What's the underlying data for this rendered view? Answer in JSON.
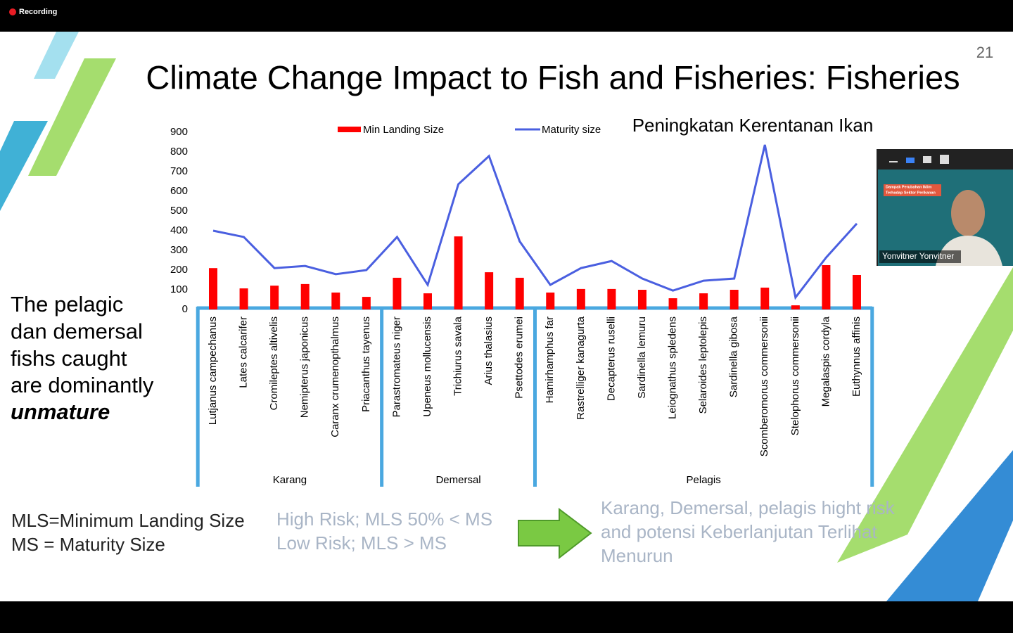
{
  "recording": "Recording",
  "slide_number": 21,
  "title": "Climate Change Impact to Fish and Fisheries: Fisheries",
  "note": {
    "lines": [
      "The pelagic",
      "dan demersal",
      "fishs caught",
      "are dominantly"
    ],
    "emphasis": "unmature"
  },
  "definitions": [
    "MLS=Minimum Landing Size",
    "MS = Maturity Size"
  ],
  "risk": [
    "High Risk; MLS 50% < MS",
    "Low Risk; MLS > MS"
  ],
  "conclusion": [
    "Karang, Demersal, pelagis hight risk",
    "and potensi Keberlanjutan Terlihat",
    "Menurun"
  ],
  "video": {
    "slide_lines": [
      "Dampak Perubahan Iklim",
      "Terhadap Sektor Perikanan"
    ],
    "name": "Yonvitner Yonvitner"
  },
  "chart_data": {
    "type": "combo",
    "subtitle": "Peningkatan Kerentanan Ikan",
    "categories": [
      "Lutjanus campechanus",
      "Lates calcarifer",
      "Cromileptes altivelis",
      "Nemipterus japonicus",
      "Caranx crumenopthalmus",
      "Priacanthus tayenus",
      "Parastromateus niger",
      "Upeneus mollucensis",
      "Trichiurus savala",
      "Arius thalasius",
      "Psettodes erumei",
      "Hamirhamphus far",
      "Rastrelliger kanagurta",
      "Decapterus ruselli",
      "Sardinella lemuru",
      "Leiognathus spledens",
      "Selaroides leptolepis",
      "Sardinella gibosa",
      "Scomberomorus commersonii",
      "Stelophorus commersonii",
      "Megalaspis cordyla",
      "Euthynnus affinis"
    ],
    "groups": [
      "Karang",
      "Karang",
      "Karang",
      "Karang",
      "Karang",
      "Karang",
      "Demersal",
      "Demersal",
      "Demersal",
      "Demersal",
      "Demersal",
      "Pelagis",
      "Pelagis",
      "Pelagis",
      "Pelagis",
      "Pelagis",
      "Pelagis",
      "Pelagis",
      "Pelagis",
      "Pelagis",
      "Pelagis",
      "Pelagis"
    ],
    "series": [
      {
        "name": "Min Landing Size",
        "style": "bar",
        "color": "#ff0000",
        "values": [
          210,
          107,
          121,
          129,
          86,
          64,
          161,
          82,
          371,
          189,
          161,
          86,
          104,
          104,
          100,
          57,
          82,
          100,
          111,
          21,
          225,
          175
        ]
      },
      {
        "name": "Maturity size",
        "style": "line",
        "color": "#4a5fe0",
        "values": [
          400,
          368,
          210,
          221,
          179,
          200,
          368,
          125,
          636,
          779,
          346,
          125,
          210,
          246,
          157,
          96,
          146,
          157,
          836,
          61,
          264,
          436
        ]
      }
    ],
    "ylim": [
      0,
      900
    ],
    "yticks": [
      0,
      100,
      200,
      300,
      400,
      500,
      600,
      700,
      800,
      900
    ],
    "group_color": "#4aa8e0"
  }
}
